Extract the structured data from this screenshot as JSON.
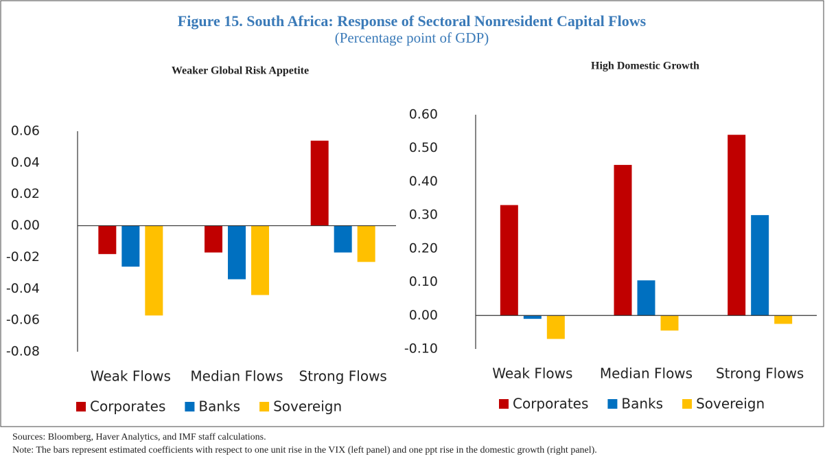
{
  "header": {
    "title": "Figure 15. South Africa: Response of Sectoral Nonresident Capital Flows",
    "subtitle": "(Percentage point of GDP)"
  },
  "chart_data": [
    {
      "type": "bar",
      "title": "Weaker Global Risk Appetite",
      "categories": [
        "Weak Flows",
        "Median Flows",
        "Strong Flows"
      ],
      "series": [
        {
          "name": "Corporates",
          "color": "#c00000",
          "values": [
            -0.018,
            -0.017,
            0.054
          ]
        },
        {
          "name": "Banks",
          "color": "#0070c0",
          "values": [
            -0.026,
            -0.034,
            -0.017
          ]
        },
        {
          "name": "Sovereign",
          "color": "#ffc000",
          "values": [
            -0.057,
            -0.044,
            -0.023
          ]
        }
      ],
      "ylim": [
        -0.08,
        0.06
      ],
      "yticks": [
        {
          "value": -0.08,
          "label": "-0.08"
        },
        {
          "value": -0.06,
          "label": "-0.06"
        },
        {
          "value": -0.04,
          "label": "-0.04"
        },
        {
          "value": -0.02,
          "label": "-0.02"
        },
        {
          "value": 0,
          "label": "0.00"
        },
        {
          "value": 0.02,
          "label": "0.02"
        },
        {
          "value": 0.04,
          "label": "0.04"
        },
        {
          "value": 0.06,
          "label": "0.06"
        }
      ],
      "legend": "bottom"
    },
    {
      "type": "bar",
      "title": "High Domestic Growth",
      "categories": [
        "Weak Flows",
        "Median Flows",
        "Strong Flows"
      ],
      "series": [
        {
          "name": "Corporates",
          "color": "#c00000",
          "values": [
            0.33,
            0.45,
            0.54
          ]
        },
        {
          "name": "Banks",
          "color": "#0070c0",
          "values": [
            -0.01,
            0.105,
            0.3
          ]
        },
        {
          "name": "Sovereign",
          "color": "#ffc000",
          "values": [
            -0.07,
            -0.045,
            -0.025
          ]
        }
      ],
      "ylim": [
        -0.1,
        0.6
      ],
      "yticks": [
        {
          "value": -0.1,
          "label": "-0.10"
        },
        {
          "value": 0,
          "label": "0.00"
        },
        {
          "value": 0.1,
          "label": "0.10"
        },
        {
          "value": 0.2,
          "label": "0.20"
        },
        {
          "value": 0.3,
          "label": "0.30"
        },
        {
          "value": 0.4,
          "label": "0.40"
        },
        {
          "value": 0.5,
          "label": "0.50"
        },
        {
          "value": 0.6,
          "label": "0.60"
        }
      ],
      "legend": "bottom"
    }
  ],
  "footer": {
    "sources": "Sources: Bloomberg, Haver Analytics, and IMF staff calculations.",
    "note": "Note: The bars represent estimated coefficients with respect to one unit rise in the VIX (left panel) and one ppt rise in the domestic growth (right panel)."
  }
}
